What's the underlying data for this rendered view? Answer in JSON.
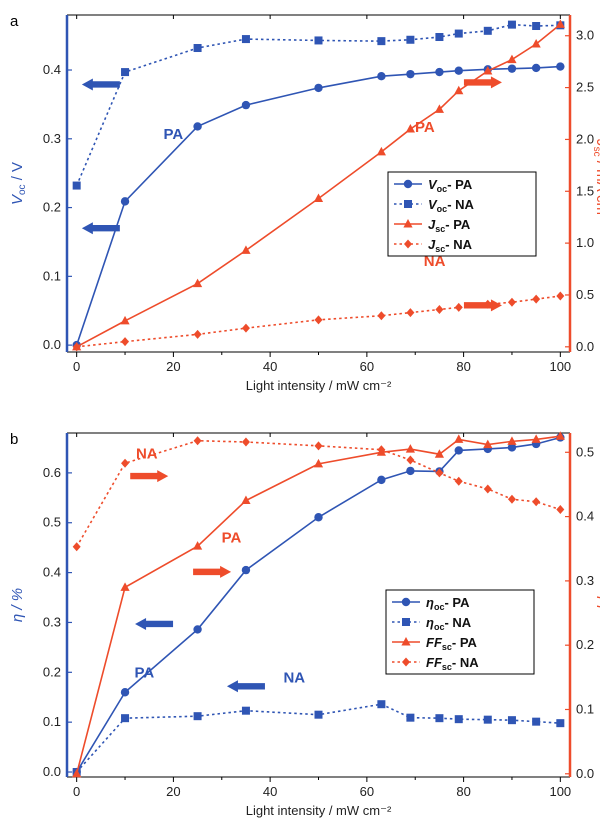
{
  "chart_data": [
    {
      "type": "line",
      "panel_label": "a",
      "xlabel": "Light intensity / mW cm⁻²",
      "xlim": [
        -2,
        102
      ],
      "x_ticks": [
        "0",
        "20",
        "40",
        "60",
        "80",
        "100"
      ],
      "ylabel_left": "V",
      "ylabel_left_sub": "oc",
      "ylabel_left_unit": " / V",
      "ylim_left": [
        -0.01,
        0.48
      ],
      "y_ticks_left": [
        "0.0",
        "0.1",
        "0.2",
        "0.3",
        "0.4"
      ],
      "ylabel_right": "J",
      "ylabel_right_sub": "sc",
      "ylabel_right_unit": " / mA cm⁻²",
      "ylim_right": [
        -0.05,
        3.2
      ],
      "y_ticks_right": [
        "0.0",
        "0.5",
        "1.0",
        "1.5",
        "2.0",
        "2.5",
        "3.0"
      ],
      "legend_position": "center-right",
      "colors": {
        "left": "#2f55b4",
        "right": "#ee4c2b"
      },
      "series": [
        {
          "name": "V",
          "name_sub": "oc",
          "name_suffix": "- PA",
          "axis": "left",
          "color": "#2f55b4",
          "marker": "circle",
          "dashed": false,
          "x": [
            0,
            10,
            25,
            35,
            50,
            63,
            69,
            75,
            79,
            85,
            90,
            95,
            100
          ],
          "y": [
            0.0,
            0.209,
            0.318,
            0.349,
            0.374,
            0.391,
            0.394,
            0.397,
            0.399,
            0.401,
            0.402,
            0.403,
            0.405
          ]
        },
        {
          "name": "V",
          "name_sub": "oc",
          "name_suffix": "- NA",
          "axis": "left",
          "color": "#2f55b4",
          "marker": "square",
          "dashed": true,
          "x": [
            0,
            10,
            25,
            35,
            50,
            63,
            69,
            75,
            79,
            85,
            90,
            95,
            100
          ],
          "y": [
            0.232,
            0.397,
            0.432,
            0.445,
            0.443,
            0.442,
            0.444,
            0.448,
            0.453,
            0.457,
            0.466,
            0.464,
            0.465
          ]
        },
        {
          "name": "J",
          "name_sub": "sc",
          "name_suffix": "- PA",
          "axis": "right",
          "color": "#ee4c2b",
          "marker": "triangle",
          "dashed": false,
          "x": [
            0,
            10,
            25,
            35,
            50,
            63,
            69,
            75,
            79,
            85,
            90,
            95,
            100
          ],
          "y": [
            0.0,
            0.25,
            0.61,
            0.93,
            1.43,
            1.88,
            2.1,
            2.29,
            2.47,
            2.66,
            2.77,
            2.92,
            3.11
          ]
        },
        {
          "name": "J",
          "name_sub": "sc",
          "name_suffix": "- NA",
          "axis": "right",
          "color": "#ee4c2b",
          "marker": "diamond",
          "dashed": true,
          "x": [
            0,
            10,
            25,
            35,
            50,
            63,
            69,
            75,
            79,
            85,
            90,
            95,
            100
          ],
          "y": [
            0.0,
            0.05,
            0.12,
            0.18,
            0.26,
            0.3,
            0.33,
            0.36,
            0.38,
            0.41,
            0.43,
            0.46,
            0.49
          ]
        }
      ],
      "annotations": [
        {
          "text": "PA",
          "x": 20,
          "y": 0.3,
          "axis": "left",
          "color": "#2f55b4"
        },
        {
          "text": "PA",
          "x": 72,
          "y": 2.07,
          "axis": "right",
          "color": "#ee4c2b"
        },
        {
          "text": "NA",
          "x": 74,
          "y": 0.78,
          "axis": "right",
          "color": "#ee4c2b"
        }
      ],
      "arrows": [
        {
          "direction": "left",
          "x": 5,
          "y": 0.379,
          "axis": "left",
          "color": "#2f55b4"
        },
        {
          "direction": "left",
          "x": 5,
          "y": 0.17,
          "axis": "left",
          "color": "#2f55b4"
        },
        {
          "direction": "right",
          "x": 84,
          "y": 2.55,
          "axis": "right",
          "color": "#ee4c2b"
        },
        {
          "direction": "right",
          "x": 84,
          "y": 0.4,
          "axis": "right",
          "color": "#ee4c2b"
        }
      ]
    },
    {
      "type": "line",
      "panel_label": "b",
      "xlabel": "Light intensity / mW cm⁻²",
      "xlim": [
        -2,
        102
      ],
      "x_ticks": [
        "0",
        "20",
        "40",
        "60",
        "80",
        "100"
      ],
      "ylabel_left": "η / %",
      "ylabel_left_sub": "",
      "ylabel_left_unit": "",
      "ylim_left": [
        -0.01,
        0.68
      ],
      "y_ticks_left": [
        "0.0",
        "0.1",
        "0.2",
        "0.3",
        "0.4",
        "0.5",
        "0.6"
      ],
      "ylabel_right": "FF",
      "ylabel_right_sub": "",
      "ylabel_right_unit": "",
      "ylim_right": [
        -0.005,
        0.53
      ],
      "y_ticks_right": [
        "0.0",
        "0.1",
        "0.2",
        "0.3",
        "0.4",
        "0.5"
      ],
      "legend_position": "center-right",
      "colors": {
        "left": "#2f55b4",
        "right": "#ee4c2b"
      },
      "series": [
        {
          "name": "η",
          "name_sub": "oc",
          "name_suffix": "- PA",
          "axis": "left",
          "color": "#2f55b4",
          "marker": "circle",
          "dashed": false,
          "x": [
            0,
            10,
            25,
            35,
            50,
            63,
            69,
            75,
            79,
            85,
            90,
            95,
            100
          ],
          "y": [
            0.0,
            0.16,
            0.286,
            0.405,
            0.511,
            0.586,
            0.604,
            0.603,
            0.645,
            0.648,
            0.651,
            0.658,
            0.671
          ]
        },
        {
          "name": "η",
          "name_sub": "oc",
          "name_suffix": "- NA",
          "axis": "left",
          "color": "#2f55b4",
          "marker": "square",
          "dashed": true,
          "x": [
            0,
            10,
            25,
            35,
            50,
            63,
            69,
            75,
            79,
            85,
            90,
            95,
            100
          ],
          "y": [
            0.0,
            0.108,
            0.112,
            0.123,
            0.115,
            0.136,
            0.109,
            0.108,
            0.106,
            0.105,
            0.104,
            0.101,
            0.098
          ]
        },
        {
          "name": "FF",
          "name_sub": "sc",
          "name_suffix": "- PA",
          "axis": "right",
          "color": "#ee4c2b",
          "marker": "triangle",
          "dashed": false,
          "x": [
            0,
            10,
            25,
            35,
            50,
            63,
            69,
            75,
            79,
            85,
            90,
            95,
            100
          ],
          "y": [
            0.0,
            0.29,
            0.354,
            0.425,
            0.482,
            0.5,
            0.505,
            0.497,
            0.52,
            0.512,
            0.517,
            0.52,
            0.525
          ]
        },
        {
          "name": "FF",
          "name_sub": "sc",
          "name_suffix": "- NA",
          "axis": "right",
          "color": "#ee4c2b",
          "marker": "diamond",
          "dashed": true,
          "x": [
            0,
            10,
            25,
            35,
            50,
            63,
            69,
            75,
            79,
            85,
            90,
            95,
            100
          ],
          "y": [
            0.353,
            0.483,
            0.518,
            0.516,
            0.51,
            0.504,
            0.488,
            0.468,
            0.455,
            0.443,
            0.427,
            0.423,
            0.411
          ]
        }
      ],
      "annotations": [
        {
          "text": "NA",
          "x": 14.5,
          "y": 0.49,
          "axis": "right",
          "color": "#ee4c2b"
        },
        {
          "text": "PA",
          "x": 32,
          "y": 0.36,
          "axis": "right",
          "color": "#ee4c2b"
        },
        {
          "text": "PA",
          "x": 14,
          "y": 0.19,
          "axis": "left",
          "color": "#2f55b4"
        },
        {
          "text": "NA",
          "x": 45,
          "y": 0.18,
          "axis": "left",
          "color": "#2f55b4"
        }
      ],
      "arrows": [
        {
          "direction": "right",
          "x": 15,
          "y": 0.463,
          "axis": "right",
          "color": "#ee4c2b"
        },
        {
          "direction": "right",
          "x": 28,
          "y": 0.314,
          "axis": "right",
          "color": "#ee4c2b"
        },
        {
          "direction": "left",
          "x": 16,
          "y": 0.297,
          "axis": "left",
          "color": "#2f55b4"
        },
        {
          "direction": "left",
          "x": 35,
          "y": 0.172,
          "axis": "left",
          "color": "#2f55b4"
        }
      ]
    }
  ]
}
